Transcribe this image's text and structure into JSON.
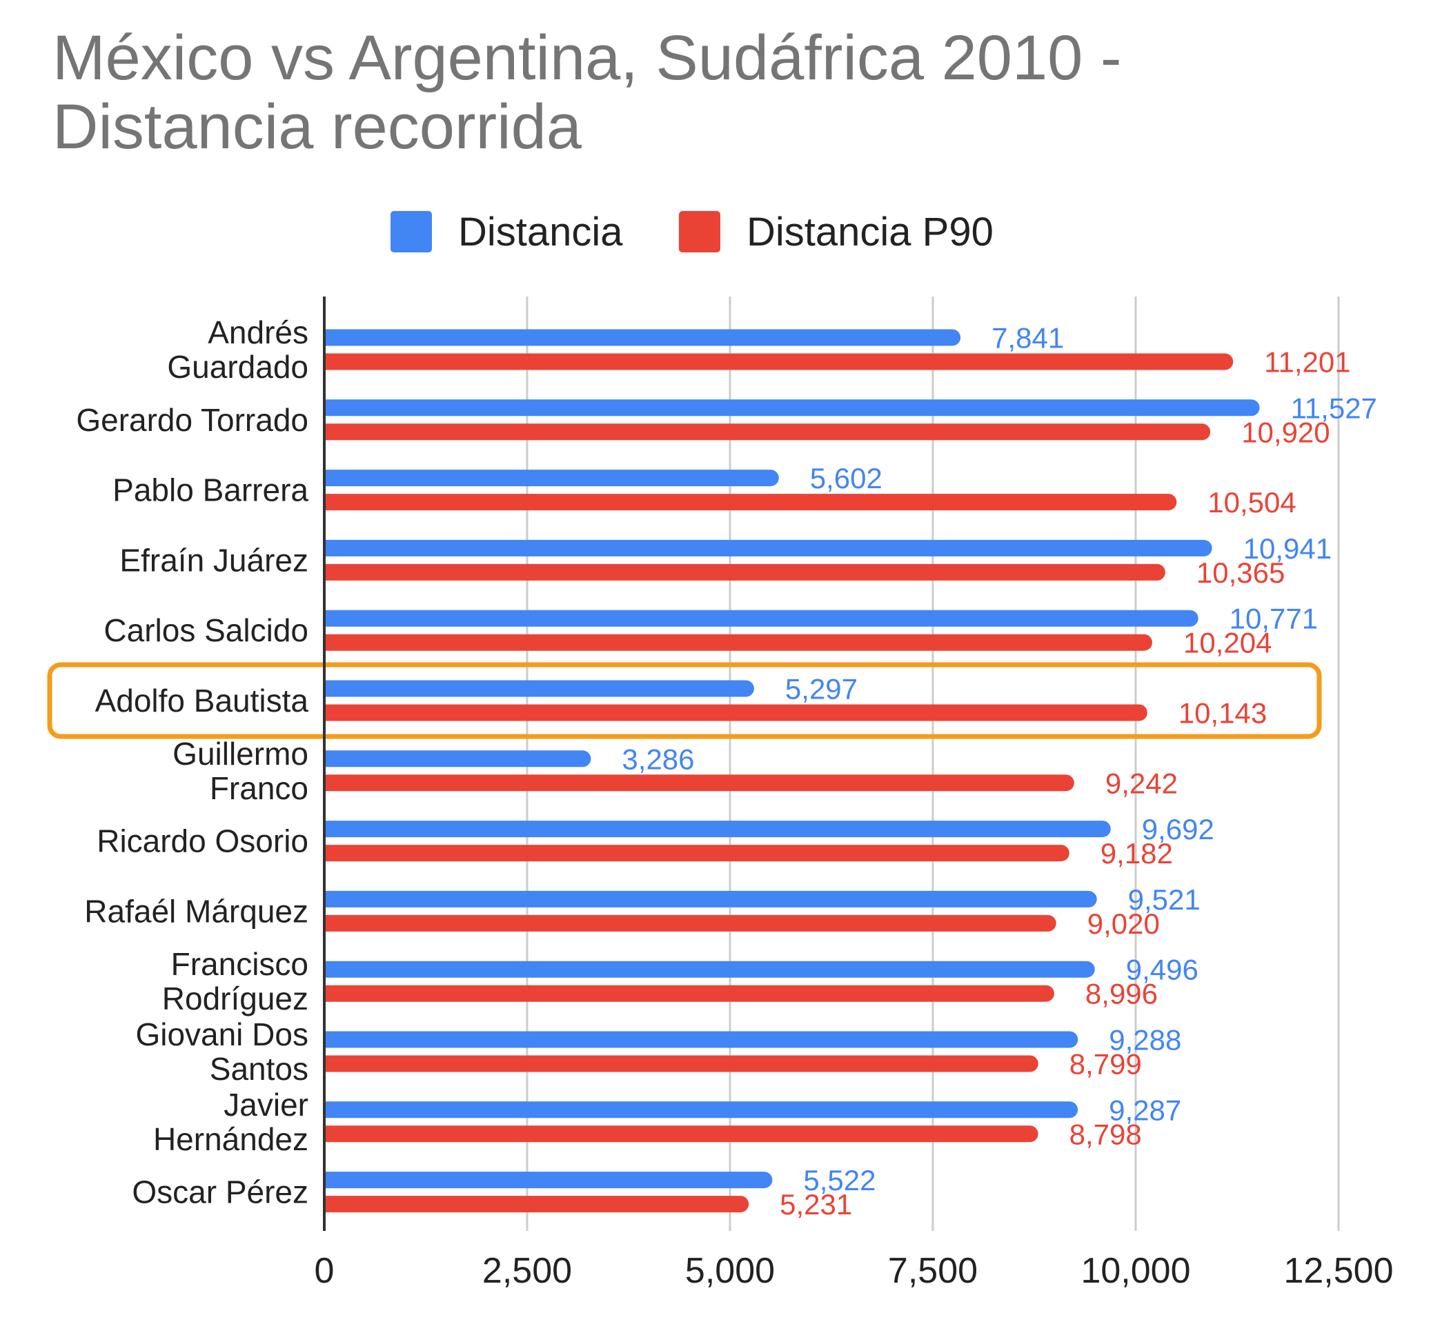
{
  "chart_data": {
    "type": "bar",
    "orientation": "horizontal",
    "title_lines": [
      "México vs Argentina, Sudáfrica 2010 -",
      "Distancia recorrida"
    ],
    "categories": [
      [
        "Andrés",
        "Guardado"
      ],
      [
        "Gerardo Torrado"
      ],
      [
        "Pablo Barrera"
      ],
      [
        "Efraín Juárez"
      ],
      [
        "Carlos Salcido"
      ],
      [
        "Adolfo Bautista"
      ],
      [
        "Guillermo",
        "Franco"
      ],
      [
        "Ricardo Osorio"
      ],
      [
        "Rafaél Márquez"
      ],
      [
        "Francisco",
        "Rodríguez"
      ],
      [
        "Giovani Dos",
        "Santos"
      ],
      [
        "Javier",
        "Hernández"
      ],
      [
        "Oscar Pérez"
      ]
    ],
    "series": [
      {
        "name": "Distancia",
        "color": "#4285f4",
        "values": [
          7841,
          11527,
          5602,
          10941,
          10771,
          5297,
          3286,
          9692,
          9521,
          9496,
          9288,
          9287,
          5522
        ],
        "labels": [
          "7,841",
          "11,527",
          "5,602",
          "10,941",
          "10,771",
          "5,297",
          "3,286",
          "9,692",
          "9,521",
          "9,496",
          "9,288",
          "9,287",
          "5,522"
        ]
      },
      {
        "name": "Distancia P90",
        "color": "#ea4335",
        "values": [
          11201,
          10920,
          10504,
          10365,
          10204,
          10143,
          9242,
          9182,
          9020,
          8996,
          8799,
          8798,
          5231
        ],
        "labels": [
          "11,201",
          "10,920",
          "10,504",
          "10,365",
          "10,204",
          "10,143",
          "9,242",
          "9,182",
          "9,020",
          "8,996",
          "8,799",
          "8,798",
          "5,231"
        ]
      }
    ],
    "xlim": [
      0,
      12500
    ],
    "xticks": [
      0,
      2500,
      5000,
      7500,
      10000,
      12500
    ],
    "xtick_labels": [
      "0",
      "2,500",
      "5,000",
      "7,500",
      "10,000",
      "12,500"
    ],
    "grid": true,
    "legend_position": "top",
    "highlight": {
      "category_index": 5,
      "color": "#f59c1a"
    }
  }
}
